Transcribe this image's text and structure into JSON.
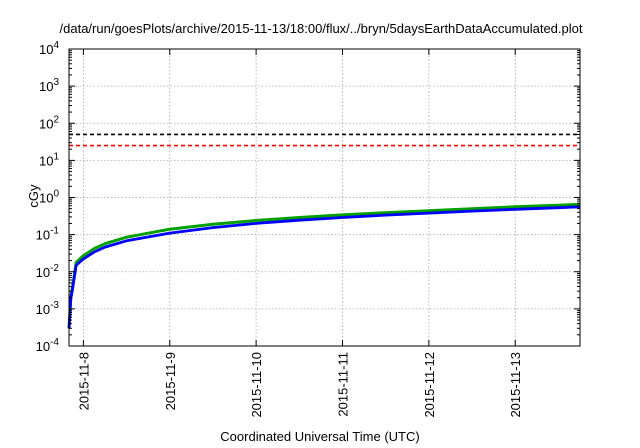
{
  "chart_data": {
    "type": "line",
    "title": "/data/run/goesPlots/archive/2015-11-13/18:00/flux/../bryn/5daysEarthDataAccumulated.plot",
    "xlabel": "Coordinated Universal Time (UTC)",
    "ylabel": "cGy",
    "y_scale": "log",
    "xlim": [
      "2015-11-07T20:00",
      "2015-11-13T18:00"
    ],
    "ylim": [
      0.0001,
      10000
    ],
    "x_ticks": [
      "2015-11-8",
      "2015-11-9",
      "2015-11-10",
      "2015-11-11",
      "2015-11-12",
      "2015-11-13"
    ],
    "y_ticks": [
      {
        "base": "10",
        "exp": "-4",
        "value": 0.0001
      },
      {
        "base": "10",
        "exp": "-3",
        "value": 0.001
      },
      {
        "base": "10",
        "exp": "-2",
        "value": 0.01
      },
      {
        "base": "10",
        "exp": "-1",
        "value": 0.1
      },
      {
        "base": "10",
        "exp": "0",
        "value": 1
      },
      {
        "base": "10",
        "exp": "1",
        "value": 10
      },
      {
        "base": "10",
        "exp": "2",
        "value": 100
      },
      {
        "base": "10",
        "exp": "3",
        "value": 1000
      },
      {
        "base": "10",
        "exp": "4",
        "value": 10000
      }
    ],
    "grid": true,
    "legend": "none",
    "reference_lines": [
      {
        "value": 50,
        "color": "#000000",
        "style": "dashed"
      },
      {
        "value": 25,
        "color": "#ff0000",
        "style": "dashed"
      }
    ],
    "series": [
      {
        "color": "#00a000",
        "x": [
          "2015-11-07T20:00",
          "2015-11-07T20:30",
          "2015-11-07T21:00",
          "2015-11-07T22:00",
          "2015-11-08T00:00",
          "2015-11-08T03:00",
          "2015-11-08T06:00",
          "2015-11-08T12:00",
          "2015-11-09T00:00",
          "2015-11-09T12:00",
          "2015-11-10T00:00",
          "2015-11-10T12:00",
          "2015-11-11T00:00",
          "2015-11-11T12:00",
          "2015-11-12T00:00",
          "2015-11-12T12:00",
          "2015-11-13T00:00",
          "2015-11-13T12:00",
          "2015-11-13T18:00"
        ],
        "values": [
          0.0003,
          0.002,
          0.004,
          0.018,
          0.027,
          0.042,
          0.057,
          0.085,
          0.14,
          0.19,
          0.24,
          0.29,
          0.34,
          0.39,
          0.44,
          0.5,
          0.56,
          0.62,
          0.65
        ]
      },
      {
        "color": "#0000ff",
        "x": [
          "2015-11-07T20:00",
          "2015-11-07T20:30",
          "2015-11-07T21:00",
          "2015-11-07T22:00",
          "2015-11-08T00:00",
          "2015-11-08T03:00",
          "2015-11-08T06:00",
          "2015-11-08T12:00",
          "2015-11-09T00:00",
          "2015-11-09T12:00",
          "2015-11-10T00:00",
          "2015-11-10T12:00",
          "2015-11-11T00:00",
          "2015-11-11T12:00",
          "2015-11-12T00:00",
          "2015-11-12T12:00",
          "2015-11-13T00:00",
          "2015-11-13T12:00",
          "2015-11-13T18:00"
        ],
        "values": [
          0.0003,
          0.0019,
          0.0035,
          0.015,
          0.022,
          0.034,
          0.046,
          0.068,
          0.11,
          0.155,
          0.2,
          0.245,
          0.29,
          0.335,
          0.38,
          0.43,
          0.48,
          0.53,
          0.56
        ]
      }
    ]
  }
}
